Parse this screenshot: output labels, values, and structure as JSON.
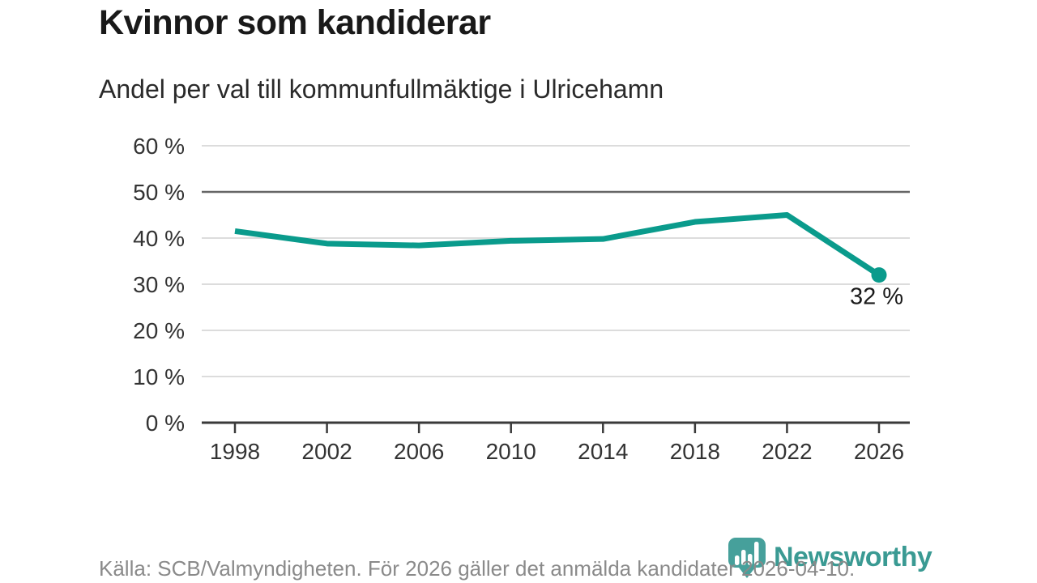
{
  "header": {
    "title": "Kvinnor som kandiderar",
    "subtitle": "Andel per val till kommunfullmäktige i Ulricehamn"
  },
  "chart_data": {
    "type": "line",
    "title": "Kvinnor som kandiderar",
    "subtitle": "Andel per val till kommunfullmäktige i Ulricehamn",
    "categories": [
      "1998",
      "2002",
      "2006",
      "2010",
      "2014",
      "2018",
      "2022",
      "2026"
    ],
    "values": [
      41.5,
      38.8,
      38.4,
      39.4,
      39.8,
      43.5,
      45,
      32
    ],
    "ylim": [
      0,
      60
    ],
    "ytick_step": 10,
    "ytick_labels": [
      "0 %",
      "10 %",
      "20 %",
      "30 %",
      "40 %",
      "50 %",
      "60 %"
    ],
    "emphasized_gridline": 50,
    "grid": true,
    "legend": "none",
    "end_label": "32 %",
    "line_color": "#0a9b8c",
    "axis_color": "#3a3a3a",
    "emphasized_grid_color": "#666666",
    "grid_color": "#dcdcdc",
    "tick_label_color": "#333333"
  },
  "footer": {
    "source": "Källa: SCB/Valmyndigheten. För 2026 gäller det anmälda kandidater 2026-04-10.",
    "brand": "Newsworthy"
  },
  "colors": {
    "line": "#0a9b8c",
    "brand_teal": "#3a9a93",
    "title_text": "#191919",
    "source_text": "#8a8a8a"
  }
}
